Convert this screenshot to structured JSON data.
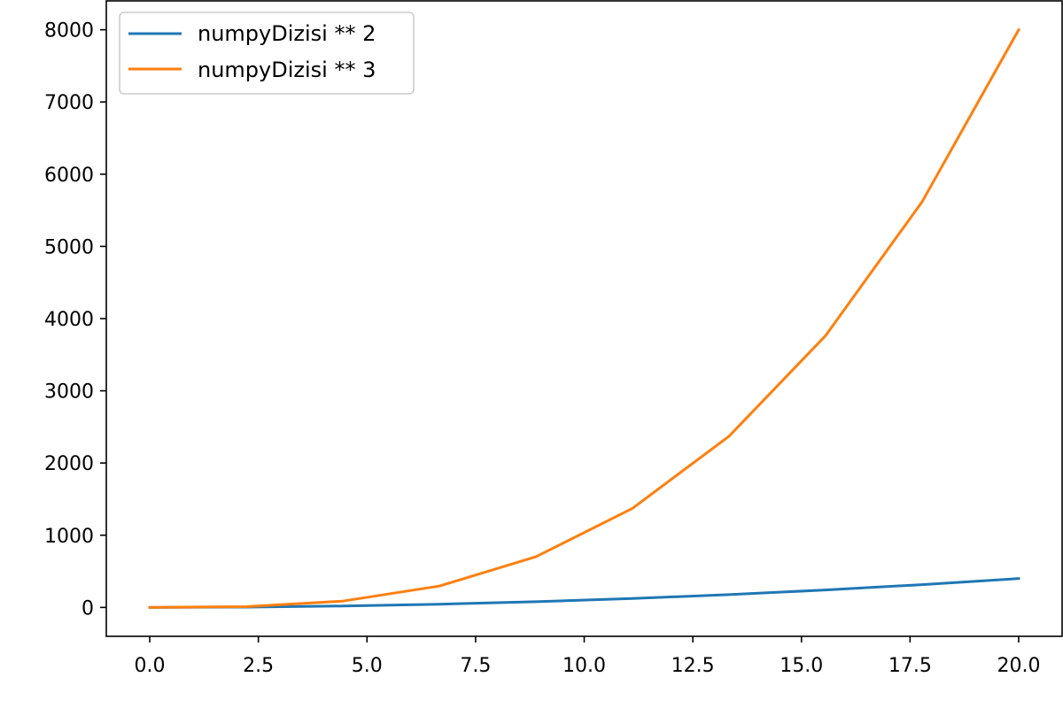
{
  "chart_data": {
    "type": "line",
    "title": "",
    "xlabel": "",
    "ylabel": "",
    "xlim": [
      -1.0,
      21.0
    ],
    "ylim": [
      -400,
      8400
    ],
    "x": [
      0.0,
      2.222,
      4.444,
      6.667,
      8.889,
      11.111,
      13.333,
      15.556,
      17.778,
      20.0
    ],
    "xticks": [
      0.0,
      2.5,
      5.0,
      7.5,
      10.0,
      12.5,
      15.0,
      17.5,
      20.0
    ],
    "xtick_labels": [
      "0.0",
      "2.5",
      "5.0",
      "7.5",
      "10.0",
      "12.5",
      "15.0",
      "17.5",
      "20.0"
    ],
    "yticks": [
      0,
      1000,
      2000,
      3000,
      4000,
      5000,
      6000,
      7000,
      8000
    ],
    "ytick_labels": [
      "0",
      "1000",
      "2000",
      "3000",
      "4000",
      "5000",
      "6000",
      "7000",
      "8000"
    ],
    "grid": false,
    "legend": "upper-left",
    "series": [
      {
        "name": "numpyDizisi ** 2",
        "color": "#1f77b4",
        "values": [
          0,
          4.9,
          19.8,
          44.4,
          79.0,
          123.5,
          177.8,
          242.0,
          316.0,
          400.0
        ]
      },
      {
        "name": "numpyDizisi ** 3",
        "color": "#ff7f0e",
        "values": [
          0,
          11.0,
          87.8,
          296.3,
          702.3,
          1371.7,
          2370.4,
          3764.0,
          5618.5,
          8000.0
        ]
      }
    ]
  }
}
